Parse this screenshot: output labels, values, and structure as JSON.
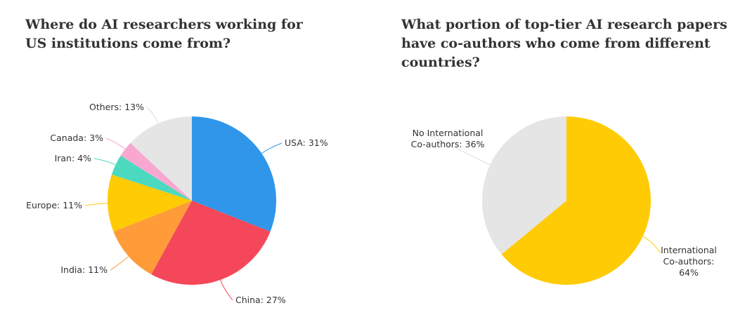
{
  "chart_data": [
    {
      "type": "pie",
      "title": "Where do AI researchers working for US institutions come from?",
      "values": [
        31,
        27,
        11,
        11,
        4,
        3,
        13
      ],
      "value_labels": [
        "USA: 31%",
        "China: 27%",
        "India: 11%",
        "Europe: 11%",
        "Iran: 4%",
        "Canada: 3%",
        "Others: 13%"
      ],
      "colors": [
        "#3096ea",
        "#f5475a",
        "#ff9b38",
        "#ffcb05",
        "#4dd9c0",
        "#f8a8d0",
        "#e5e5e5"
      ]
    },
    {
      "type": "pie",
      "title": "What portion of top-tier AI research papers have co-authors who come from different countries?",
      "values": [
        64,
        36
      ],
      "value_labels": [
        "International\nCo-authors: 64%",
        "No International\nCo-authors: 36%"
      ],
      "colors": [
        "#ffcb05",
        "#e5e5e5"
      ]
    }
  ]
}
